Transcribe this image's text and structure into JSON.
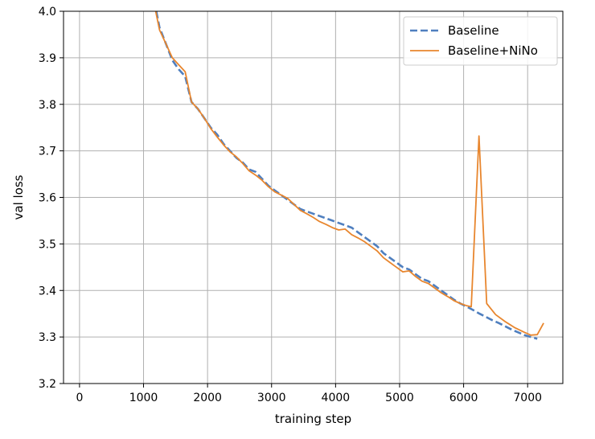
{
  "chart_data": {
    "type": "line",
    "xlabel": "training step",
    "ylabel": "val loss",
    "xlim": [
      -250,
      7550
    ],
    "ylim": [
      3.2,
      4.0
    ],
    "xticks": [
      0,
      1000,
      2000,
      3000,
      4000,
      5000,
      6000,
      7000
    ],
    "yticks": [
      3.2,
      3.3,
      3.4,
      3.5,
      3.6,
      3.7,
      3.8,
      3.9,
      4.0
    ],
    "grid": true,
    "legend_position": "top-right",
    "series": [
      {
        "name": "Baseline",
        "color": "#4f7fbf",
        "style": "dashed",
        "x": [
          1200,
          1250,
          1350,
          1450,
          1550,
          1650,
          1750,
          1850,
          1950,
          2050,
          2150,
          2250,
          2350,
          2450,
          2550,
          2650,
          2750,
          2850,
          2950,
          3050,
          3150,
          3250,
          3350,
          3450,
          3550,
          3650,
          3750,
          3850,
          3950,
          4050,
          4150,
          4250,
          4350,
          4450,
          4550,
          4650,
          4750,
          4850,
          4950,
          5050,
          5150,
          5250,
          5350,
          5450,
          5550,
          5650,
          5750,
          5850,
          5950,
          6050,
          6150,
          6250,
          6350,
          6450,
          6550,
          6650,
          6750,
          6850,
          6950,
          7050,
          7150
        ],
        "values": [
          4.0,
          3.965,
          3.93,
          3.895,
          3.875,
          3.86,
          3.805,
          3.79,
          3.77,
          3.75,
          3.735,
          3.715,
          3.7,
          3.685,
          3.675,
          3.66,
          3.655,
          3.64,
          3.625,
          3.615,
          3.605,
          3.595,
          3.585,
          3.575,
          3.57,
          3.565,
          3.56,
          3.555,
          3.55,
          3.545,
          3.54,
          3.535,
          3.525,
          3.515,
          3.505,
          3.495,
          3.48,
          3.47,
          3.46,
          3.45,
          3.445,
          3.435,
          3.425,
          3.42,
          3.41,
          3.4,
          3.39,
          3.38,
          3.372,
          3.365,
          3.358,
          3.35,
          3.343,
          3.336,
          3.33,
          3.323,
          3.316,
          3.31,
          3.304,
          3.3,
          3.296
        ]
      },
      {
        "name": "Baseline+NiNo",
        "color": "#e8862e",
        "style": "solid",
        "x": [
          1190,
          1250,
          1350,
          1450,
          1550,
          1650,
          1750,
          1850,
          1950,
          2050,
          2150,
          2250,
          2350,
          2450,
          2550,
          2650,
          2750,
          2850,
          2950,
          3050,
          3150,
          3250,
          3350,
          3450,
          3550,
          3650,
          3750,
          3850,
          3950,
          4050,
          4150,
          4250,
          4350,
          4450,
          4550,
          4650,
          4750,
          4850,
          4950,
          5050,
          5150,
          5250,
          5350,
          5450,
          5550,
          5650,
          5750,
          5850,
          5950,
          6050,
          6120,
          6240,
          6360,
          6500,
          6650,
          6800,
          6950,
          7050,
          7150,
          7250
        ],
        "values": [
          4.0,
          3.96,
          3.93,
          3.9,
          3.885,
          3.87,
          3.805,
          3.79,
          3.77,
          3.748,
          3.73,
          3.713,
          3.698,
          3.687,
          3.673,
          3.657,
          3.648,
          3.637,
          3.623,
          3.612,
          3.605,
          3.598,
          3.585,
          3.572,
          3.565,
          3.557,
          3.548,
          3.542,
          3.535,
          3.53,
          3.532,
          3.52,
          3.513,
          3.505,
          3.495,
          3.485,
          3.47,
          3.46,
          3.45,
          3.44,
          3.442,
          3.43,
          3.42,
          3.415,
          3.405,
          3.395,
          3.387,
          3.378,
          3.372,
          3.367,
          3.365,
          3.732,
          3.372,
          3.348,
          3.333,
          3.32,
          3.31,
          3.304,
          3.305,
          3.33
        ]
      }
    ]
  }
}
